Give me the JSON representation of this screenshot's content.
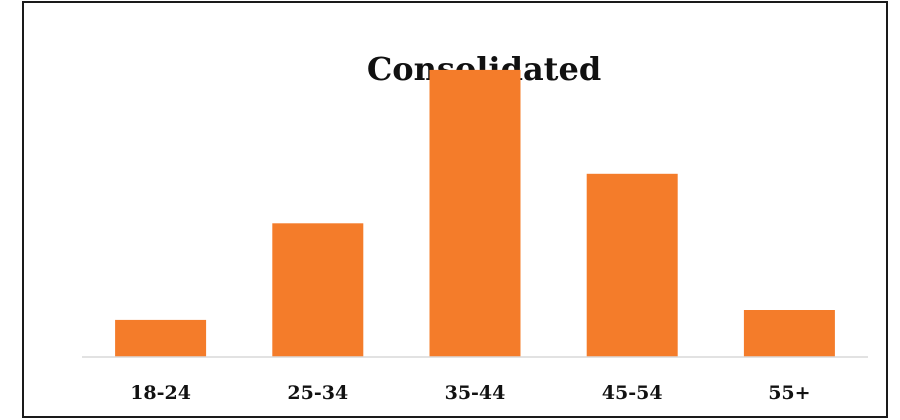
{
  "chart_data": {
    "type": "bar",
    "title": "Consolidated",
    "categories": [
      "18-24",
      "25-34",
      "35-44",
      "45-54",
      "55+"
    ],
    "values": [
      7.5,
      27,
      58,
      37,
      9.5
    ],
    "ylim": [
      0,
      60
    ],
    "grid": false,
    "legend": "none",
    "xlabel": "",
    "ylabel": "",
    "colors": {
      "bar": "#F47C2A",
      "axis": "#d9d9d9",
      "text": "#111111",
      "border": "#1a1a1a"
    }
  }
}
